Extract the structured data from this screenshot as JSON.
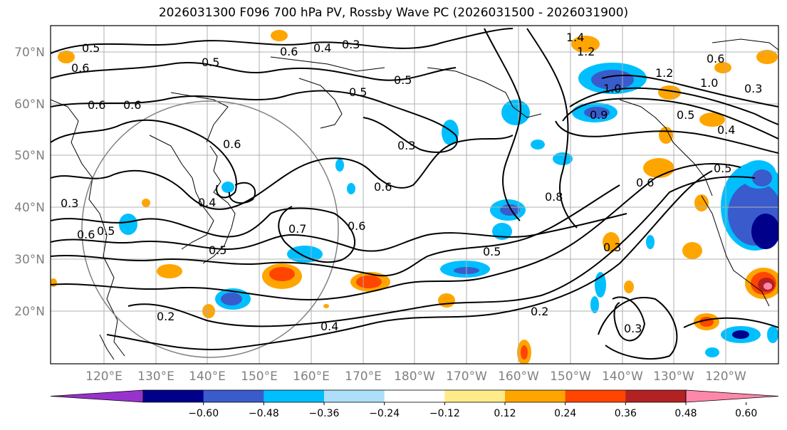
{
  "title": "2026031300 F096 700 hPa PV, Rossby Wave PC (2026031500 - 2026031900)",
  "lat_labels": [
    "70°N",
    "60°N",
    "50°N",
    "40°N",
    "30°N",
    "20°N"
  ],
  "lon_labels": [
    "120°E",
    "130°E",
    "140°E",
    "150°E",
    "160°E",
    "170°E",
    "180°W",
    "170°W",
    "160°W",
    "150°W",
    "140°W",
    "130°W",
    "120°W"
  ],
  "colorbar": {
    "colors": [
      "#9932CC",
      "#00008B",
      "#3A5BCC",
      "#00BFFF",
      "#ADDFFA",
      "#FFFFFF",
      "#FFEB8A",
      "#FFA500",
      "#FF4500",
      "#B22222",
      "#FF88AA"
    ],
    "labels": [
      "−0.60",
      "−0.48",
      "−0.36",
      "−0.24",
      "−0.12",
      "0.12",
      "0.24",
      "0.36",
      "0.48",
      "0.60"
    ]
  },
  "contour_labels": [
    "0.5",
    "0.6",
    "0.6",
    "0.5",
    "0.4",
    "0.3",
    "0.5",
    "0.6",
    "0.6",
    "0.3",
    "0.3",
    "0.6",
    "0.6",
    "0.5",
    "0.7",
    "0.6",
    "0.5",
    "0.5",
    "0.8",
    "0.6",
    "0.5",
    "0.4",
    "0.2",
    "0.2",
    "0.3",
    "0.3",
    "1.4",
    "1.2",
    "1.0",
    "0.9",
    "0.5",
    "0.4",
    "0.6",
    "1.2",
    "1.0",
    "0.6",
    "0.5",
    "0.4",
    "0.3"
  ]
}
